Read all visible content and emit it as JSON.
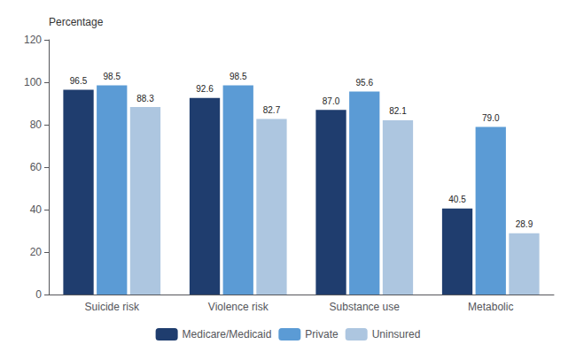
{
  "chart_data": {
    "type": "bar",
    "ylabel": "Percentage",
    "categories": [
      "Suicide risk",
      "Violence risk",
      "Substance use",
      "Metabolic"
    ],
    "series": [
      {
        "name": "Medicare/Medicaid",
        "color": "#1f3d6e",
        "values": [
          96.5,
          92.6,
          87.0,
          40.5
        ],
        "value_labels": [
          "96.5",
          "92.6",
          "87.0",
          "40.5"
        ]
      },
      {
        "name": "Private",
        "color": "#5b9bd5",
        "values": [
          98.5,
          98.5,
          95.6,
          79.0
        ],
        "value_labels": [
          "98.5",
          "98.5",
          "95.6",
          "79.0"
        ]
      },
      {
        "name": "Uninsured",
        "color": "#adc6e0",
        "values": [
          88.3,
          82.7,
          82.1,
          28.9
        ],
        "value_labels": [
          "88.3",
          "82.7",
          "82.1",
          "28.9"
        ]
      }
    ],
    "ylim": [
      0,
      120
    ],
    "yticks": [
      0,
      20,
      40,
      60,
      80,
      100,
      120
    ],
    "grid": false,
    "legend": "bottom",
    "data_labels": true
  }
}
